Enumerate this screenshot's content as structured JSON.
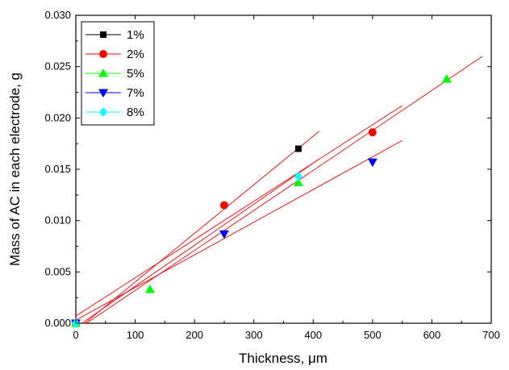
{
  "chart_data": {
    "type": "scatter",
    "title": "",
    "xlabel": "Thickness, μm",
    "ylabel": "Mass of AC in each electrode, g",
    "xlim": [
      0,
      700
    ],
    "ylim": [
      0,
      0.03
    ],
    "xticks": [
      0,
      100,
      200,
      300,
      400,
      500,
      600,
      700
    ],
    "yticks": [
      0.0,
      0.005,
      0.01,
      0.015,
      0.02,
      0.025,
      0.03
    ],
    "ytick_labels": [
      "0.000",
      "0.005",
      "0.010",
      "0.015",
      "0.020",
      "0.025",
      "0.030"
    ],
    "grid": false,
    "legend_position": "top-left",
    "fit_line_color": "#e8181b",
    "series": [
      {
        "name": "1%",
        "marker": "square",
        "color": "#000000",
        "points": [
          [
            0,
            0.0
          ],
          [
            375,
            0.017
          ]
        ],
        "fit": [
          [
            15,
            0.0
          ],
          [
            410,
            0.0187
          ]
        ]
      },
      {
        "name": "2%",
        "marker": "circle",
        "color": "#ff0000",
        "points": [
          [
            0,
            0.0
          ],
          [
            250,
            0.0115
          ],
          [
            500,
            0.0186
          ]
        ],
        "fit": [
          [
            0,
            0.0007
          ],
          [
            550,
            0.0212
          ]
        ]
      },
      {
        "name": "5%",
        "marker": "triangle-up",
        "color": "#00ff00",
        "points": [
          [
            0,
            0.0
          ],
          [
            125,
            0.0033
          ],
          [
            375,
            0.0137
          ],
          [
            625,
            0.0238
          ]
        ],
        "fit": [
          [
            18,
            0.0
          ],
          [
            685,
            0.026
          ]
        ]
      },
      {
        "name": "7%",
        "marker": "triangle-down",
        "color": "#0000ff",
        "points": [
          [
            0,
            0.0
          ],
          [
            250,
            0.0087
          ],
          [
            500,
            0.0157
          ]
        ],
        "fit": [
          [
            0,
            0.0003
          ],
          [
            550,
            0.0178
          ]
        ]
      },
      {
        "name": "8%",
        "marker": "diamond",
        "color": "#00ffff",
        "points": [
          [
            0,
            0.0
          ],
          [
            375,
            0.0143
          ]
        ],
        "fit": [
          [
            10,
            0.0
          ],
          [
            410,
            0.016
          ]
        ]
      }
    ]
  }
}
